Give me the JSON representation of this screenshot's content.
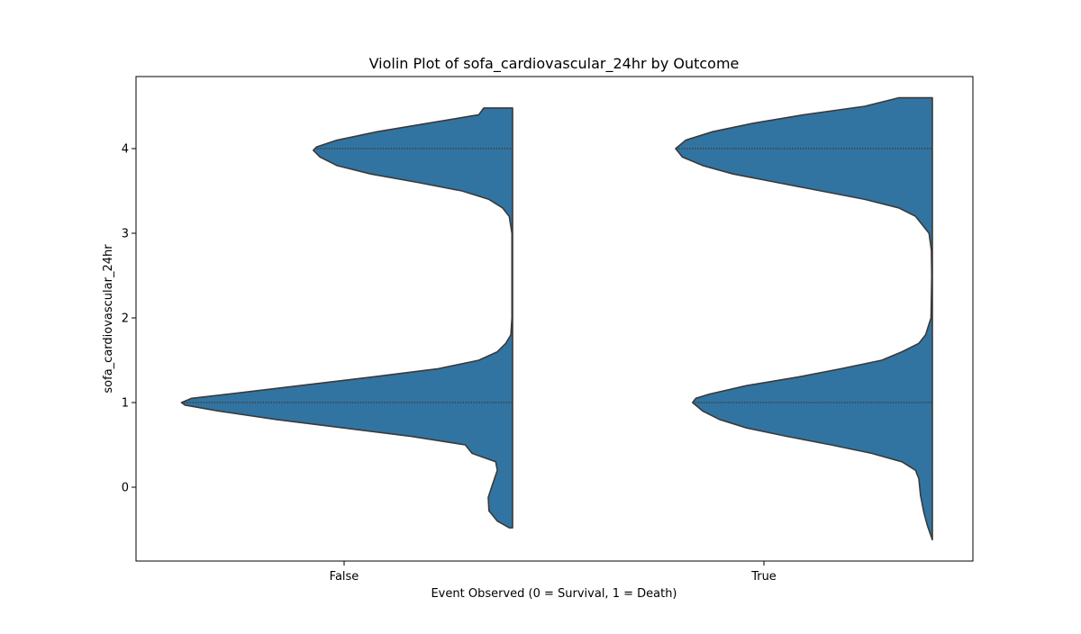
{
  "chart_data": {
    "type": "violin",
    "title": "Violin Plot of sofa_cardiovascular_24hr by Outcome",
    "xlabel": "Event Observed (0 = Survival, 1 = Death)",
    "ylabel": "sofa_cardiovascular_24hr",
    "categories": [
      "False",
      "True"
    ],
    "yticks": [
      0,
      1,
      2,
      3,
      4
    ],
    "ylim": [
      -0.9,
      4.8
    ],
    "grid": false,
    "fill_color": "#3274a1",
    "edge_color": "#3a3a3a",
    "quartile_lines": [
      1,
      4
    ],
    "violins": [
      {
        "category": "False",
        "y_range": [
          -0.48,
          4.48
        ],
        "profile": [
          [
            -0.48,
            0.01
          ],
          [
            -0.4,
            0.045
          ],
          [
            -0.28,
            0.07
          ],
          [
            -0.12,
            0.072
          ],
          [
            0.05,
            0.058
          ],
          [
            0.2,
            0.045
          ],
          [
            0.3,
            0.05
          ],
          [
            0.4,
            0.12
          ],
          [
            0.5,
            0.14
          ],
          [
            0.6,
            0.3
          ],
          [
            0.7,
            0.5
          ],
          [
            0.8,
            0.7
          ],
          [
            0.9,
            0.87
          ],
          [
            0.97,
            0.97
          ],
          [
            1.0,
            0.98
          ],
          [
            1.05,
            0.95
          ],
          [
            1.1,
            0.84
          ],
          [
            1.2,
            0.63
          ],
          [
            1.3,
            0.42
          ],
          [
            1.4,
            0.22
          ],
          [
            1.5,
            0.1
          ],
          [
            1.6,
            0.045
          ],
          [
            1.7,
            0.02
          ],
          [
            1.8,
            0.005
          ],
          [
            2.0,
            0.002
          ],
          [
            2.5,
            0.002
          ],
          [
            3.0,
            0.002
          ],
          [
            3.2,
            0.01
          ],
          [
            3.3,
            0.03
          ],
          [
            3.4,
            0.07
          ],
          [
            3.5,
            0.15
          ],
          [
            3.6,
            0.28
          ],
          [
            3.7,
            0.42
          ],
          [
            3.8,
            0.52
          ],
          [
            3.9,
            0.57
          ],
          [
            3.98,
            0.59
          ],
          [
            4.02,
            0.58
          ],
          [
            4.1,
            0.52
          ],
          [
            4.2,
            0.4
          ],
          [
            4.3,
            0.25
          ],
          [
            4.4,
            0.1
          ],
          [
            4.48,
            0.085
          ]
        ]
      },
      {
        "category": "True",
        "y_range": [
          -0.62,
          4.6
        ],
        "profile": [
          [
            -0.62,
            0.0
          ],
          [
            -0.45,
            0.015
          ],
          [
            -0.3,
            0.025
          ],
          [
            -0.1,
            0.035
          ],
          [
            0.1,
            0.04
          ],
          [
            0.2,
            0.05
          ],
          [
            0.3,
            0.09
          ],
          [
            0.4,
            0.18
          ],
          [
            0.5,
            0.3
          ],
          [
            0.6,
            0.43
          ],
          [
            0.7,
            0.55
          ],
          [
            0.8,
            0.63
          ],
          [
            0.9,
            0.68
          ],
          [
            1.0,
            0.71
          ],
          [
            1.05,
            0.7
          ],
          [
            1.1,
            0.66
          ],
          [
            1.2,
            0.55
          ],
          [
            1.3,
            0.4
          ],
          [
            1.4,
            0.27
          ],
          [
            1.5,
            0.15
          ],
          [
            1.6,
            0.09
          ],
          [
            1.7,
            0.04
          ],
          [
            1.8,
            0.02
          ],
          [
            2.0,
            0.004
          ],
          [
            2.5,
            0.002
          ],
          [
            2.8,
            0.003
          ],
          [
            3.0,
            0.01
          ],
          [
            3.2,
            0.05
          ],
          [
            3.3,
            0.1
          ],
          [
            3.4,
            0.2
          ],
          [
            3.5,
            0.33
          ],
          [
            3.6,
            0.46
          ],
          [
            3.7,
            0.59
          ],
          [
            3.8,
            0.68
          ],
          [
            3.9,
            0.74
          ],
          [
            4.0,
            0.76
          ],
          [
            4.1,
            0.73
          ],
          [
            4.2,
            0.65
          ],
          [
            4.3,
            0.53
          ],
          [
            4.4,
            0.38
          ],
          [
            4.5,
            0.2
          ],
          [
            4.6,
            0.1
          ]
        ]
      }
    ]
  }
}
